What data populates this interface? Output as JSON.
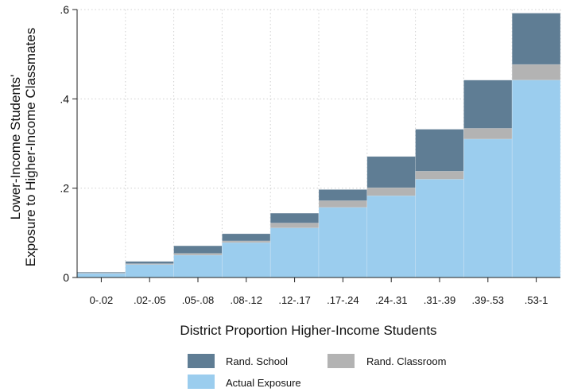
{
  "chart_data": {
    "type": "bar",
    "categories": [
      "0-.02",
      ".02-.05",
      ".05-.08",
      ".08-.12",
      ".12-.17",
      ".17-.24",
      ".24-.31",
      ".31-.39",
      ".39-.53",
      ".53-1"
    ],
    "series": [
      {
        "name": "Rand. School",
        "color": "#5f7d94",
        "values": [
          0.012,
          0.036,
          0.071,
          0.098,
          0.144,
          0.197,
          0.271,
          0.332,
          0.442,
          0.592
        ]
      },
      {
        "name": "Rand. Classroom",
        "color": "#b3b3b3",
        "values": [
          0.01,
          0.031,
          0.054,
          0.082,
          0.122,
          0.172,
          0.201,
          0.238,
          0.334,
          0.477
        ]
      },
      {
        "name": "Actual Exposure",
        "color": "#9bcdee",
        "values": [
          0.009,
          0.029,
          0.05,
          0.078,
          0.111,
          0.157,
          0.183,
          0.22,
          0.31,
          0.442
        ]
      }
    ],
    "xlabel": "District Proportion Higher-Income Students",
    "ylabel_lines": [
      "Lower-Income Students'",
      "Exposure to Higher-Income Classmates"
    ],
    "yticks": [
      0,
      0.2,
      0.4,
      0.6
    ],
    "ytick_labels": [
      "0",
      ".2",
      ".4",
      ".6"
    ],
    "ylim": [
      0,
      0.6
    ],
    "grid": true,
    "legend_position": "bottom"
  }
}
